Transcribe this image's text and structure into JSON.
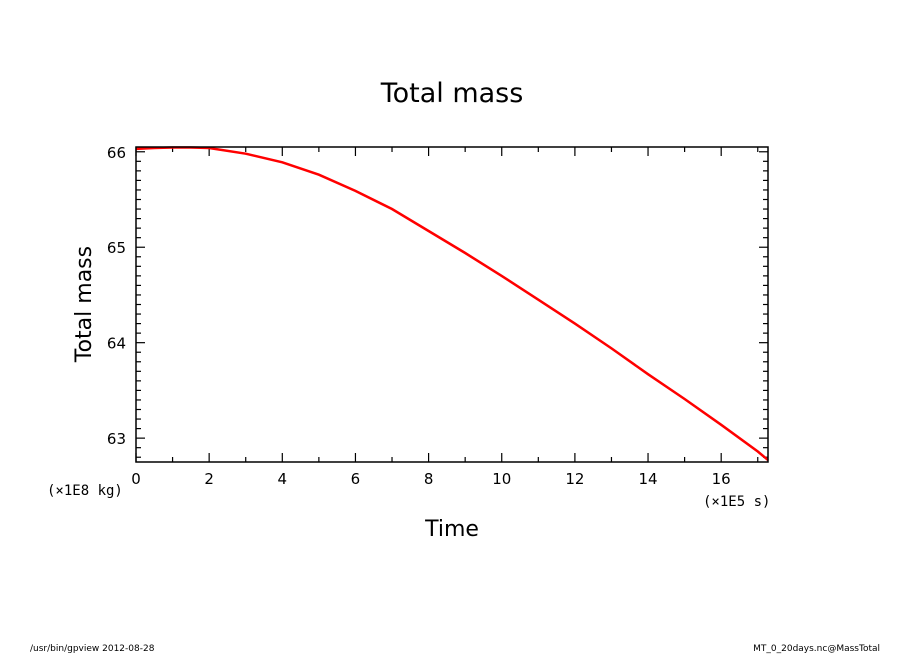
{
  "chart_data": {
    "type": "line",
    "title": "Total mass",
    "xlabel": "Time",
    "ylabel": "Total mass",
    "x_unit": "(×1E5 s)",
    "y_unit": "(×1E8 kg)",
    "xlim": [
      0,
      17.28
    ],
    "ylim": [
      62.75,
      66.05
    ],
    "x_ticks": [
      0,
      2,
      4,
      6,
      8,
      10,
      12,
      14,
      16
    ],
    "x_tick_labels": [
      "0",
      "2",
      "4",
      "6",
      "8",
      "10",
      "12",
      "14",
      "16"
    ],
    "y_ticks": [
      63,
      64,
      65,
      66
    ],
    "y_tick_labels": [
      "63",
      "64",
      "65",
      "66"
    ],
    "grid": false,
    "line_color": "#ff0000",
    "series": [
      {
        "x": [
          0,
          0.5,
          1,
          1.5,
          2,
          3,
          4,
          5,
          6,
          7,
          8,
          9,
          10,
          11,
          12,
          13,
          14,
          15,
          16,
          17,
          17.28
        ],
        "y": [
          66.03,
          66.04,
          66.045,
          66.045,
          66.04,
          65.98,
          65.89,
          65.76,
          65.59,
          65.4,
          65.17,
          64.94,
          64.7,
          64.45,
          64.2,
          63.94,
          63.67,
          63.41,
          63.14,
          62.86,
          62.77
        ]
      }
    ]
  },
  "footer": {
    "left": "/usr/bin/gpview  2012-08-28",
    "right": "MT_0_20days.nc@MassTotal"
  }
}
